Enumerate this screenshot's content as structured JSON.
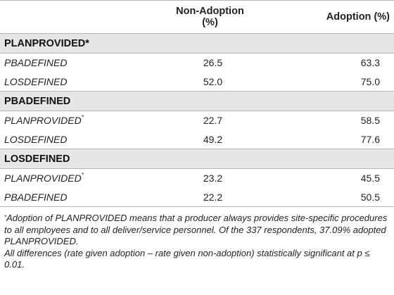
{
  "table": {
    "headers": [
      "",
      "Non-Adoption (%)",
      "Adoption (%)"
    ],
    "groups": [
      {
        "title": "PLANPROVIDED*",
        "rows": [
          {
            "label": "PBADEFINED",
            "non_adoption": "26.5",
            "adoption": "63.3"
          },
          {
            "label": "LOSDEFINED",
            "non_adoption": "52.0",
            "adoption": "75.0"
          }
        ]
      },
      {
        "title": "PBADEFINED",
        "rows": [
          {
            "label": "PLANPROVIDED",
            "label_sup": "*",
            "non_adoption": "22.7",
            "adoption": "58.5"
          },
          {
            "label": "LOSDEFINED",
            "non_adoption": "49.2",
            "adoption": "77.6"
          }
        ]
      },
      {
        "title": "LOSDEFINED",
        "rows": [
          {
            "label": "PLANPROVIDED",
            "label_sup": "*",
            "non_adoption": "23.2",
            "adoption": "45.5"
          },
          {
            "label": "PBADEFINED",
            "non_adoption": "22.2",
            "adoption": "50.5"
          }
        ]
      }
    ]
  },
  "footnotes": {
    "note1_marker": "*",
    "note1_text": "Adoption of PLANPROVIDED means that a producer always provides site-specific procedures to all employees and to all deliver/service personnel. Of the 337 respondents, 37.09% adopted PLANPROVIDED.",
    "note2_text": "All differences (rate given adoption – rate given non-adoption) statistically significant at p ≤ 0.01."
  }
}
